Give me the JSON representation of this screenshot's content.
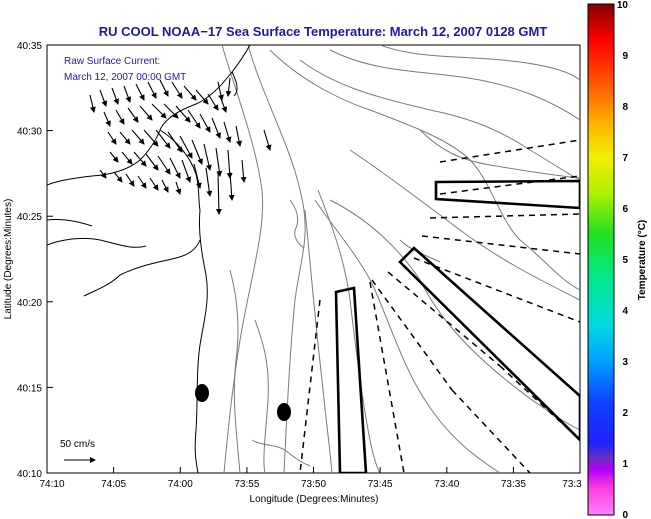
{
  "title": "RU COOL  NOAA−17  Sea Surface Temperature:  March 12, 2007 0128 GMT",
  "current_label": {
    "line1": "Raw Surface Current:",
    "line2": "March 12, 2007 00:00 GMT"
  },
  "scale_arrow_label": "50 cm/s",
  "xlabel": "Longitude (Degrees:Minutes)",
  "ylabel": "Latitude (Degrees:Minutes)",
  "x_ticks": [
    "74:10",
    "74:05",
    "74:00",
    "73:55",
    "73:50",
    "73:45",
    "73:40",
    "73:35",
    "73:3"
  ],
  "y_ticks": [
    "40:35",
    "40:30",
    "40:25",
    "40:20",
    "40:15",
    "40:10"
  ],
  "colorbar": {
    "label": "Temperature (°C)",
    "ticks": [
      "10",
      "9",
      "8",
      "7",
      "6",
      "5",
      "4",
      "3",
      "2",
      "1",
      "0"
    ],
    "min": 0,
    "max": 10
  },
  "colors": {
    "title": "#1a1aa8",
    "annotation": "#1a1aa8",
    "contour": "#7a7a7a",
    "coast": "#000000"
  }
}
